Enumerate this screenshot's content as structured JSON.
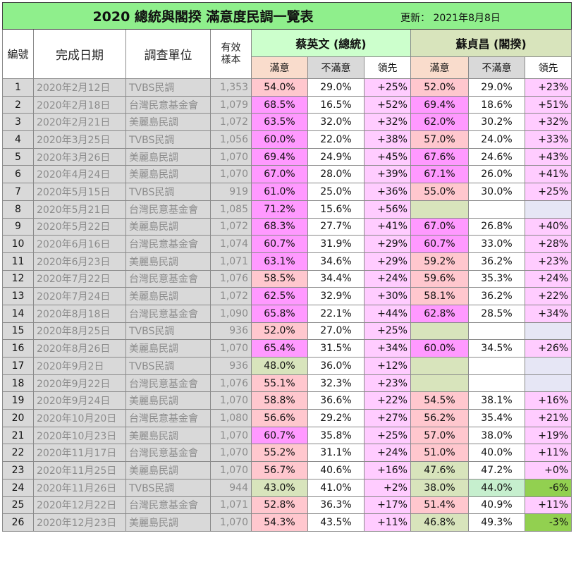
{
  "title": "2020  總統與閣揆  滿意度民調一覽表",
  "updated": "更新：  2021年8月8日",
  "headers": {
    "no": "編號",
    "date": "完成日期",
    "org": "調查單位",
    "sample": "有效樣本",
    "tsai": "蔡英文 (總統)",
    "su": "蘇貞昌 (閣揆)",
    "sat": "滿意",
    "dissat": "不滿意",
    "lead": "領先"
  },
  "colors": {
    "header_green": "#8fef8c",
    "magenta": "#ff99ff",
    "pink": "#ffc7ce",
    "olive": "#d8e4bc",
    "lightgreen": "#c6efce",
    "lightpink": "#ffccff",
    "lavender": "#e6e6f5",
    "strong_green": "#92d050",
    "gray": "#d9d9d9"
  },
  "rows": [
    {
      "no": "1",
      "date": "2020年2月12日",
      "org": "TVBS民調",
      "n": "1,353",
      "t_sat": "54.0%",
      "t_dis": "29.0%",
      "t_lead": "+25%",
      "s_sat": "52.0%",
      "s_dis": "29.0%",
      "s_lead": "+23%",
      "tc": "pink",
      "tl": "lightpink",
      "sc": "pink",
      "sd": "",
      "sl": "lightpink"
    },
    {
      "no": "2",
      "date": "2020年2月18日",
      "org": "台灣民意基金會",
      "n": "1,079",
      "t_sat": "68.5%",
      "t_dis": "16.5%",
      "t_lead": "+52%",
      "s_sat": "69.4%",
      "s_dis": "18.6%",
      "s_lead": "+51%",
      "tc": "magenta",
      "tl": "lightpink",
      "sc": "magenta",
      "sd": "",
      "sl": "lightpink"
    },
    {
      "no": "3",
      "date": "2020年2月21日",
      "org": "美麗島民調",
      "n": "1,072",
      "t_sat": "63.5%",
      "t_dis": "32.0%",
      "t_lead": "+32%",
      "s_sat": "62.0%",
      "s_dis": "30.2%",
      "s_lead": "+32%",
      "tc": "magenta",
      "tl": "lightpink",
      "sc": "magenta",
      "sd": "",
      "sl": "lightpink"
    },
    {
      "no": "4",
      "date": "2020年3月25日",
      "org": "TVBS民調",
      "n": "1,056",
      "t_sat": "60.0%",
      "t_dis": "22.0%",
      "t_lead": "+38%",
      "s_sat": "57.0%",
      "s_dis": "24.0%",
      "s_lead": "+33%",
      "tc": "magenta",
      "tl": "lightpink",
      "sc": "pink",
      "sd": "",
      "sl": "lightpink"
    },
    {
      "no": "5",
      "date": "2020年3月26日",
      "org": "美麗島民調",
      "n": "1,070",
      "t_sat": "69.4%",
      "t_dis": "24.9%",
      "t_lead": "+45%",
      "s_sat": "67.6%",
      "s_dis": "24.6%",
      "s_lead": "+43%",
      "tc": "magenta",
      "tl": "lightpink",
      "sc": "magenta",
      "sd": "",
      "sl": "lightpink"
    },
    {
      "no": "6",
      "date": "2020年4月24日",
      "org": "美麗島民調",
      "n": "1,070",
      "t_sat": "67.0%",
      "t_dis": "28.0%",
      "t_lead": "+39%",
      "s_sat": "67.1%",
      "s_dis": "26.0%",
      "s_lead": "+41%",
      "tc": "magenta",
      "tl": "lightpink",
      "sc": "magenta",
      "sd": "",
      "sl": "lightpink"
    },
    {
      "no": "7",
      "date": "2020年5月15日",
      "org": "TVBS民調",
      "n": "919",
      "t_sat": "61.0%",
      "t_dis": "25.0%",
      "t_lead": "+36%",
      "s_sat": "55.0%",
      "s_dis": "30.0%",
      "s_lead": "+25%",
      "tc": "magenta",
      "tl": "lightpink",
      "sc": "pink",
      "sd": "",
      "sl": "lightpink"
    },
    {
      "no": "8",
      "date": "2020年5月21日",
      "org": "台灣民意基金會",
      "n": "1,085",
      "t_sat": "71.2%",
      "t_dis": "15.6%",
      "t_lead": "+56%",
      "s_sat": "",
      "s_dis": "",
      "s_lead": "",
      "tc": "magenta",
      "tl": "lightpink",
      "sc": "olive",
      "sd": "",
      "sl": "lavender"
    },
    {
      "no": "9",
      "date": "2020年5月22日",
      "org": "美麗島民調",
      "n": "1,072",
      "t_sat": "68.3%",
      "t_dis": "27.7%",
      "t_lead": "+41%",
      "s_sat": "67.0%",
      "s_dis": "26.8%",
      "s_lead": "+40%",
      "tc": "magenta",
      "tl": "lightpink",
      "sc": "magenta",
      "sd": "",
      "sl": "lightpink"
    },
    {
      "no": "10",
      "date": "2020年6月16日",
      "org": "台灣民意基金會",
      "n": "1,074",
      "t_sat": "60.7%",
      "t_dis": "31.9%",
      "t_lead": "+29%",
      "s_sat": "60.7%",
      "s_dis": "33.0%",
      "s_lead": "+28%",
      "tc": "magenta",
      "tl": "lightpink",
      "sc": "magenta",
      "sd": "",
      "sl": "lightpink"
    },
    {
      "no": "11",
      "date": "2020年6月23日",
      "org": "美麗島民調",
      "n": "1,071",
      "t_sat": "63.1%",
      "t_dis": "34.6%",
      "t_lead": "+29%",
      "s_sat": "59.2%",
      "s_dis": "36.2%",
      "s_lead": "+23%",
      "tc": "magenta",
      "tl": "lightpink",
      "sc": "pink",
      "sd": "",
      "sl": "lightpink"
    },
    {
      "no": "12",
      "date": "2020年7月22日",
      "org": "台灣民意基金會",
      "n": "1,076",
      "t_sat": "58.5%",
      "t_dis": "34.4%",
      "t_lead": "+24%",
      "s_sat": "59.6%",
      "s_dis": "35.3%",
      "s_lead": "+24%",
      "tc": "pink",
      "tl": "lightpink",
      "sc": "pink",
      "sd": "",
      "sl": "lightpink"
    },
    {
      "no": "13",
      "date": "2020年7月24日",
      "org": "美麗島民調",
      "n": "1,072",
      "t_sat": "62.5%",
      "t_dis": "32.9%",
      "t_lead": "+30%",
      "s_sat": "58.1%",
      "s_dis": "36.2%",
      "s_lead": "+22%",
      "tc": "magenta",
      "tl": "lightpink",
      "sc": "pink",
      "sd": "",
      "sl": "lightpink"
    },
    {
      "no": "14",
      "date": "2020年8月18日",
      "org": "台灣民意基金會",
      "n": "1,090",
      "t_sat": "65.8%",
      "t_dis": "22.1%",
      "t_lead": "+44%",
      "s_sat": "62.8%",
      "s_dis": "28.5%",
      "s_lead": "+34%",
      "tc": "magenta",
      "tl": "lightpink",
      "sc": "magenta",
      "sd": "",
      "sl": "lightpink"
    },
    {
      "no": "15",
      "date": "2020年8月25日",
      "org": "TVBS民調",
      "n": "936",
      "t_sat": "52.0%",
      "t_dis": "27.0%",
      "t_lead": "+25%",
      "s_sat": "",
      "s_dis": "",
      "s_lead": "",
      "tc": "pink",
      "tl": "lightpink",
      "sc": "olive",
      "sd": "",
      "sl": "lavender"
    },
    {
      "no": "16",
      "date": "2020年8月26日",
      "org": "美麗島民調",
      "n": "1,070",
      "t_sat": "65.4%",
      "t_dis": "31.5%",
      "t_lead": "+34%",
      "s_sat": "60.0%",
      "s_dis": "34.5%",
      "s_lead": "+26%",
      "tc": "magenta",
      "tl": "lightpink",
      "sc": "magenta",
      "sd": "",
      "sl": "lightpink"
    },
    {
      "no": "17",
      "date": "2020年9月2日",
      "org": "TVBS民調",
      "n": "936",
      "t_sat": "48.0%",
      "t_dis": "36.0%",
      "t_lead": "+12%",
      "s_sat": "",
      "s_dis": "",
      "s_lead": "",
      "tc": "olive",
      "tl": "lightpink",
      "sc": "olive",
      "sd": "",
      "sl": "lavender"
    },
    {
      "no": "18",
      "date": "2020年9月22日",
      "org": "台灣民意基金會",
      "n": "1,076",
      "t_sat": "55.1%",
      "t_dis": "32.3%",
      "t_lead": "+23%",
      "s_sat": "",
      "s_dis": "",
      "s_lead": "",
      "tc": "pink",
      "tl": "lightpink",
      "sc": "olive",
      "sd": "",
      "sl": "lavender"
    },
    {
      "no": "19",
      "date": "2020年9月24日",
      "org": "美麗島民調",
      "n": "1,070",
      "t_sat": "58.8%",
      "t_dis": "36.6%",
      "t_lead": "+22%",
      "s_sat": "54.5%",
      "s_dis": "38.1%",
      "s_lead": "+16%",
      "tc": "pink",
      "tl": "lightpink",
      "sc": "pink",
      "sd": "",
      "sl": "lightpink"
    },
    {
      "no": "20",
      "date": "2020年10月20日",
      "org": "台灣民意基金會",
      "n": "1,080",
      "t_sat": "56.6%",
      "t_dis": "29.2%",
      "t_lead": "+27%",
      "s_sat": "56.2%",
      "s_dis": "35.4%",
      "s_lead": "+21%",
      "tc": "pink",
      "tl": "lightpink",
      "sc": "pink",
      "sd": "",
      "sl": "lightpink"
    },
    {
      "no": "21",
      "date": "2020年10月23日",
      "org": "美麗島民調",
      "n": "1,070",
      "t_sat": "60.7%",
      "t_dis": "35.8%",
      "t_lead": "+25%",
      "s_sat": "57.0%",
      "s_dis": "38.0%",
      "s_lead": "+19%",
      "tc": "magenta",
      "tl": "lightpink",
      "sc": "pink",
      "sd": "",
      "sl": "lightpink"
    },
    {
      "no": "22",
      "date": "2020年11月17日",
      "org": "台灣民意基金會",
      "n": "1,070",
      "t_sat": "55.2%",
      "t_dis": "31.1%",
      "t_lead": "+24%",
      "s_sat": "51.0%",
      "s_dis": "40.0%",
      "s_lead": "+11%",
      "tc": "pink",
      "tl": "lightpink",
      "sc": "pink",
      "sd": "",
      "sl": "lightpink"
    },
    {
      "no": "23",
      "date": "2020年11月25日",
      "org": "美麗島民調",
      "n": "1,070",
      "t_sat": "56.7%",
      "t_dis": "40.6%",
      "t_lead": "+16%",
      "s_sat": "47.6%",
      "s_dis": "47.2%",
      "s_lead": "+0%",
      "tc": "pink",
      "tl": "lightpink",
      "sc": "olive",
      "sd": "",
      "sl": "lightpink"
    },
    {
      "no": "24",
      "date": "2020年11月26日",
      "org": "TVBS民調",
      "n": "944",
      "t_sat": "43.0%",
      "t_dis": "41.0%",
      "t_lead": "+2%",
      "s_sat": "38.0%",
      "s_dis": "44.0%",
      "s_lead": "-6%",
      "tc": "olive",
      "tl": "lightpink",
      "sc": "olive",
      "sd": "lightgreen",
      "sl": "strong_green"
    },
    {
      "no": "25",
      "date": "2020年12月22日",
      "org": "台灣民意基金會",
      "n": "1,071",
      "t_sat": "52.8%",
      "t_dis": "36.3%",
      "t_lead": "+17%",
      "s_sat": "51.4%",
      "s_dis": "40.9%",
      "s_lead": "+11%",
      "tc": "pink",
      "tl": "lightpink",
      "sc": "pink",
      "sd": "",
      "sl": "lightpink"
    },
    {
      "no": "26",
      "date": "2020年12月23日",
      "org": "美麗島民調",
      "n": "1,070",
      "t_sat": "54.3%",
      "t_dis": "43.5%",
      "t_lead": "+11%",
      "s_sat": "46.8%",
      "s_dis": "49.3%",
      "s_lead": "-3%",
      "tc": "pink",
      "tl": "lightpink",
      "sc": "olive",
      "sd": "",
      "sl": "strong_green"
    }
  ]
}
